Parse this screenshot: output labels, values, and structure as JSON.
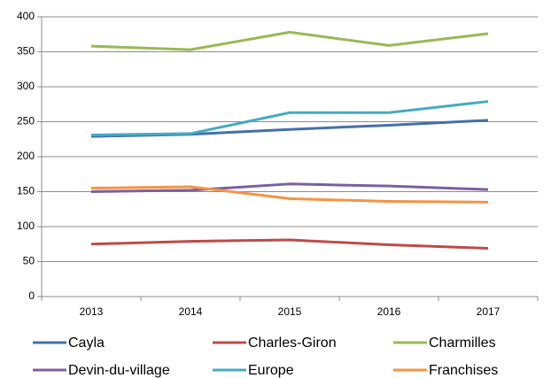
{
  "chart_data": {
    "type": "line",
    "categories": [
      "2013",
      "2014",
      "2015",
      "2016",
      "2017"
    ],
    "series": [
      {
        "name": "Cayla",
        "color": "#4470aa",
        "values": [
          229,
          232,
          239,
          245,
          252
        ]
      },
      {
        "name": "Charles-Giron",
        "color": "#be4b48",
        "values": [
          75,
          79,
          81,
          74,
          69
        ]
      },
      {
        "name": "Charmilles",
        "color": "#98b954",
        "values": [
          358,
          353,
          378,
          359,
          376
        ]
      },
      {
        "name": "Devin-du-village",
        "color": "#7d5fa0",
        "values": [
          150,
          152,
          161,
          158,
          153
        ]
      },
      {
        "name": "Europe",
        "color": "#46aac5",
        "values": [
          231,
          233,
          263,
          263,
          279
        ]
      },
      {
        "name": "Franchises",
        "color": "#f59343",
        "values": [
          155,
          157,
          140,
          136,
          135
        ]
      }
    ],
    "ylim": [
      0,
      400
    ],
    "yticks": [
      0,
      50,
      100,
      150,
      200,
      250,
      300,
      350,
      400
    ],
    "grid": true
  }
}
